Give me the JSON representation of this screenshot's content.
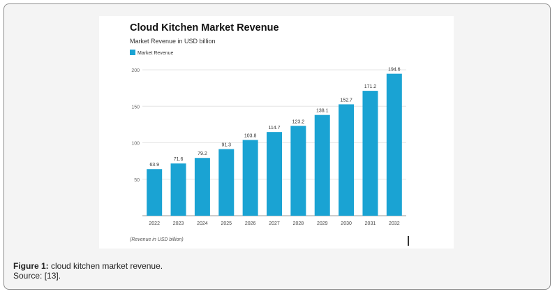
{
  "chart_data": {
    "type": "bar",
    "title": "Cloud Kitchen Market Revenue",
    "subtitle": "Market Revenue in USD billion",
    "xlabel": "",
    "ylabel": "",
    "footnote": "(Revenue in USD billion)",
    "legend": {
      "entries": [
        "Market Revenue"
      ],
      "placement": "top-left"
    },
    "categories": [
      "2022",
      "2023",
      "2024",
      "2025",
      "2026",
      "2027",
      "2028",
      "2029",
      "2030",
      "2031",
      "2032"
    ],
    "series": [
      {
        "name": "Market Revenue",
        "values": [
          63.9,
          71.6,
          79.2,
          91.3,
          103.8,
          114.7,
          123.2,
          138.1,
          152.7,
          171.2,
          194.6
        ]
      }
    ],
    "data_labels": [
      "63.9",
      "71.6",
      "79.2",
      "91.3",
      "103.8",
      "114.7",
      "123.2",
      "138.1",
      "152.7",
      "171.2",
      "194.6"
    ],
    "yticks": [
      50,
      100,
      150,
      200
    ],
    "ytick_labels": [
      "50",
      "100",
      "150",
      "200"
    ],
    "ylim": [
      0,
      200
    ],
    "grid": true,
    "bar_color": "#1aa3d3"
  },
  "caption": {
    "lead": "Figure 1:",
    "text": " cloud kitchen market revenue.",
    "source": "Source: [13]."
  }
}
